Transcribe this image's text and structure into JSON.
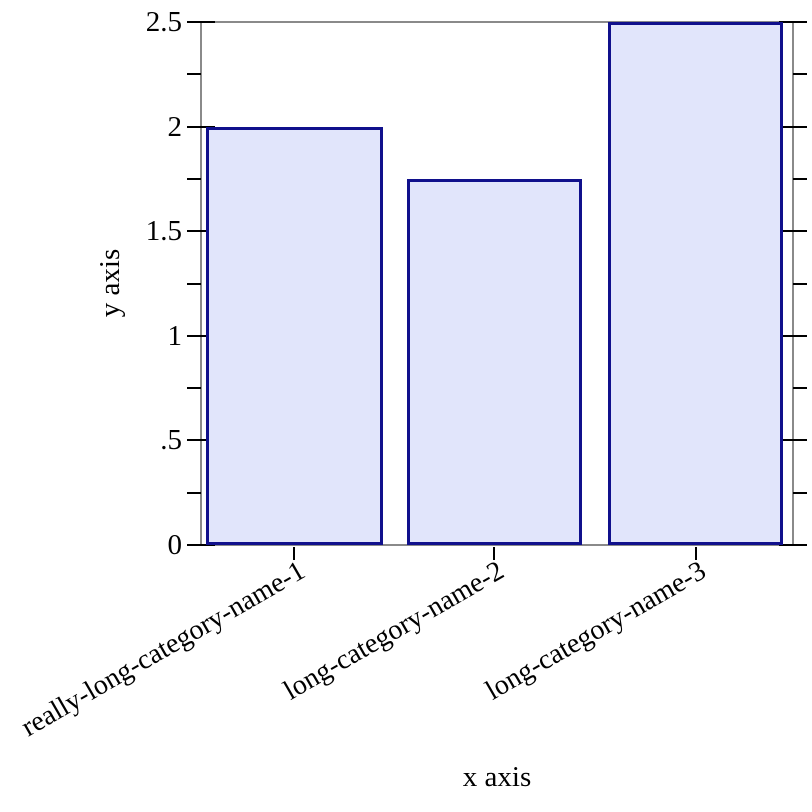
{
  "figure": {
    "background": "#ffffff"
  },
  "chart_data": {
    "type": "bar",
    "title": "",
    "xlabel": "x axis",
    "ylabel": "y axis",
    "categories": [
      "really-long-category-name-1",
      "long-category-name-2",
      "long-category-name-3"
    ],
    "values": [
      2,
      1.75,
      2.5
    ],
    "ylim": [
      0,
      2.5
    ],
    "y_major_ticks": [
      0,
      0.5,
      1,
      1.5,
      2,
      2.5
    ],
    "y_major_tick_labels": [
      "0",
      ".5",
      "1",
      "1.5",
      "2",
      "2.5"
    ],
    "y_minor_ticks": [
      0.25,
      0.75,
      1.25,
      1.75,
      2.25
    ],
    "x_tick_label_rotation_deg": -30,
    "grid": false,
    "legend": "none",
    "colors": {
      "bar_fill": "#e1e5fb",
      "bar_border": "#10108c",
      "axis_line": "#8a8a8a",
      "tick": "#000000",
      "text": "#000000"
    }
  }
}
